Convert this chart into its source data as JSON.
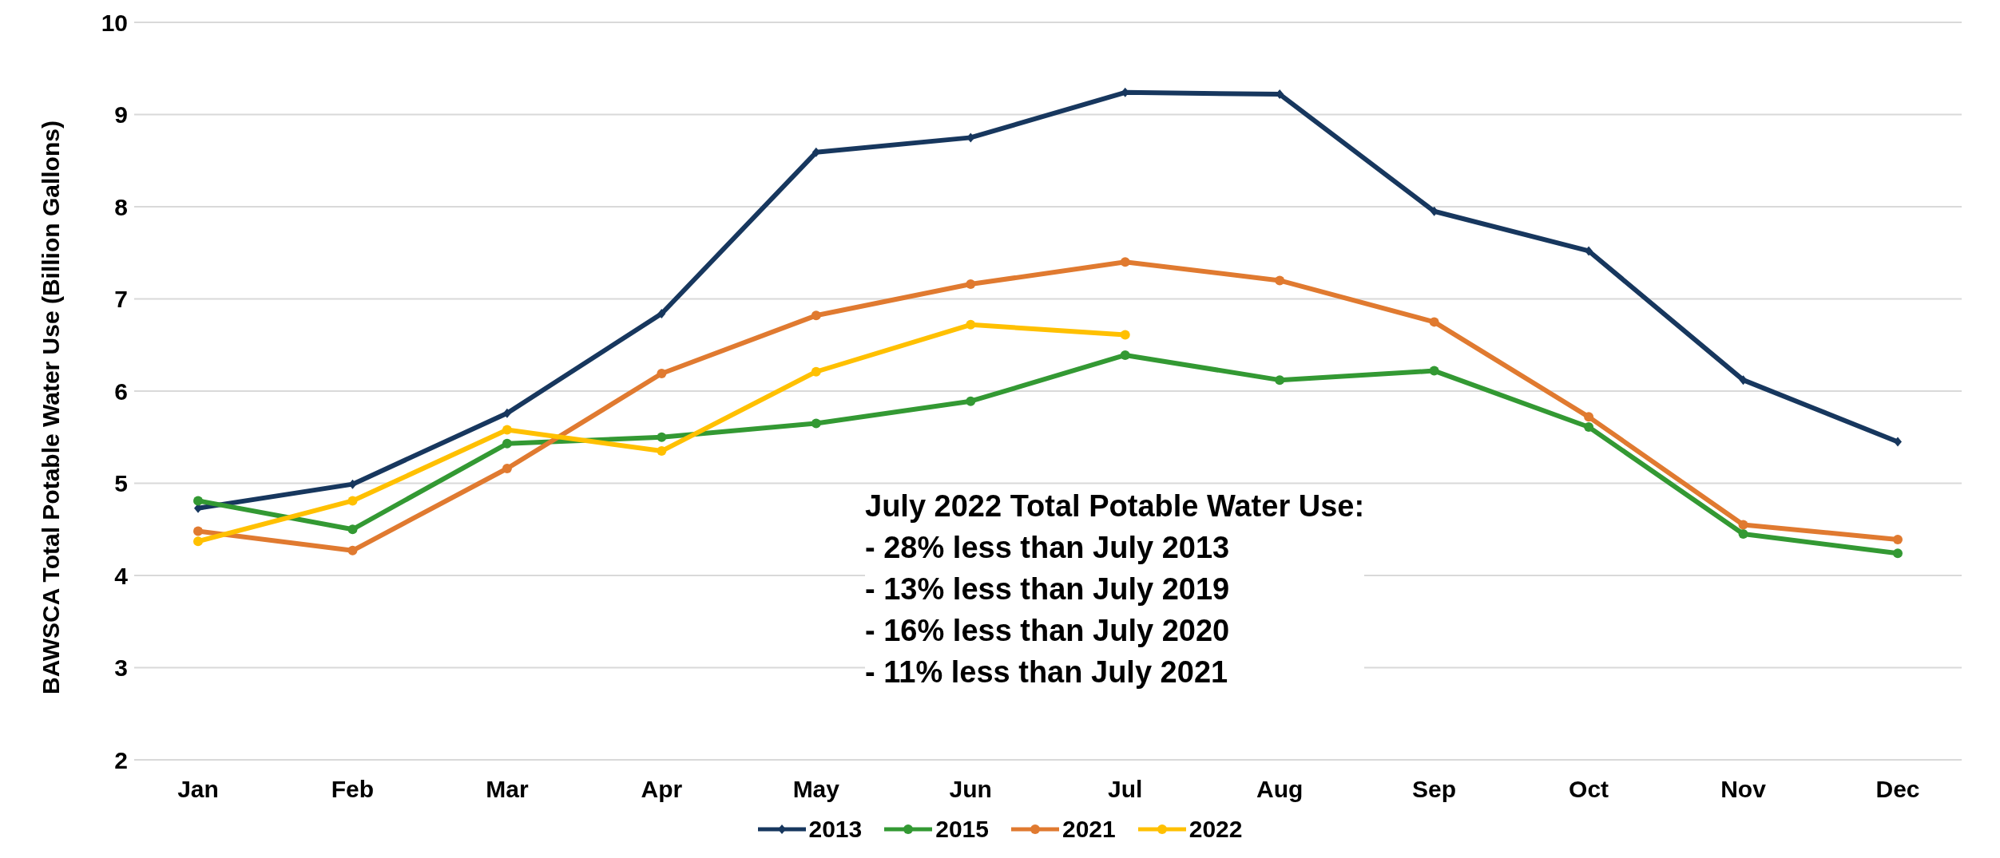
{
  "chart_data": {
    "type": "line",
    "ylabel": "BAWSCA Total Potable Water Use (Billion Gallons)",
    "categories": [
      "Jan",
      "Feb",
      "Mar",
      "Apr",
      "May",
      "Jun",
      "Jul",
      "Aug",
      "Sep",
      "Oct",
      "Nov",
      "Dec"
    ],
    "series": [
      {
        "name": "2013",
        "color": "#17375e",
        "marker": "diamond",
        "values": [
          4.73,
          4.99,
          5.76,
          6.84,
          8.59,
          8.75,
          9.24,
          9.22,
          7.95,
          7.52,
          6.12,
          5.45
        ]
      },
      {
        "name": "2015",
        "color": "#339933",
        "values": [
          4.81,
          4.5,
          5.43,
          5.5,
          5.65,
          5.89,
          6.39,
          6.12,
          6.22,
          5.61,
          4.45,
          4.24
        ]
      },
      {
        "name": "2021",
        "color": "#e07a30",
        "values": [
          4.48,
          4.27,
          5.16,
          6.19,
          6.82,
          7.16,
          7.4,
          7.2,
          6.75,
          5.72,
          4.55,
          4.39
        ]
      },
      {
        "name": "2022",
        "color": "#ffc000",
        "values": [
          4.37,
          4.81,
          5.58,
          5.35,
          6.21,
          6.72,
          6.61,
          null,
          null,
          null,
          null,
          null
        ]
      }
    ],
    "ylim": [
      2,
      10
    ],
    "yticks": [
      2,
      3,
      4,
      5,
      6,
      7,
      8,
      9,
      10
    ],
    "grid": "y",
    "legend": "bottom",
    "marker": "circle",
    "line_style": "solid",
    "annotations": [
      "July 2022 Total Potable Water Use:",
      "- 28% less than July 2013",
      "- 13% less than July 2019",
      "- 16% less than July 2020",
      "- 11% less than July 2021"
    ]
  }
}
